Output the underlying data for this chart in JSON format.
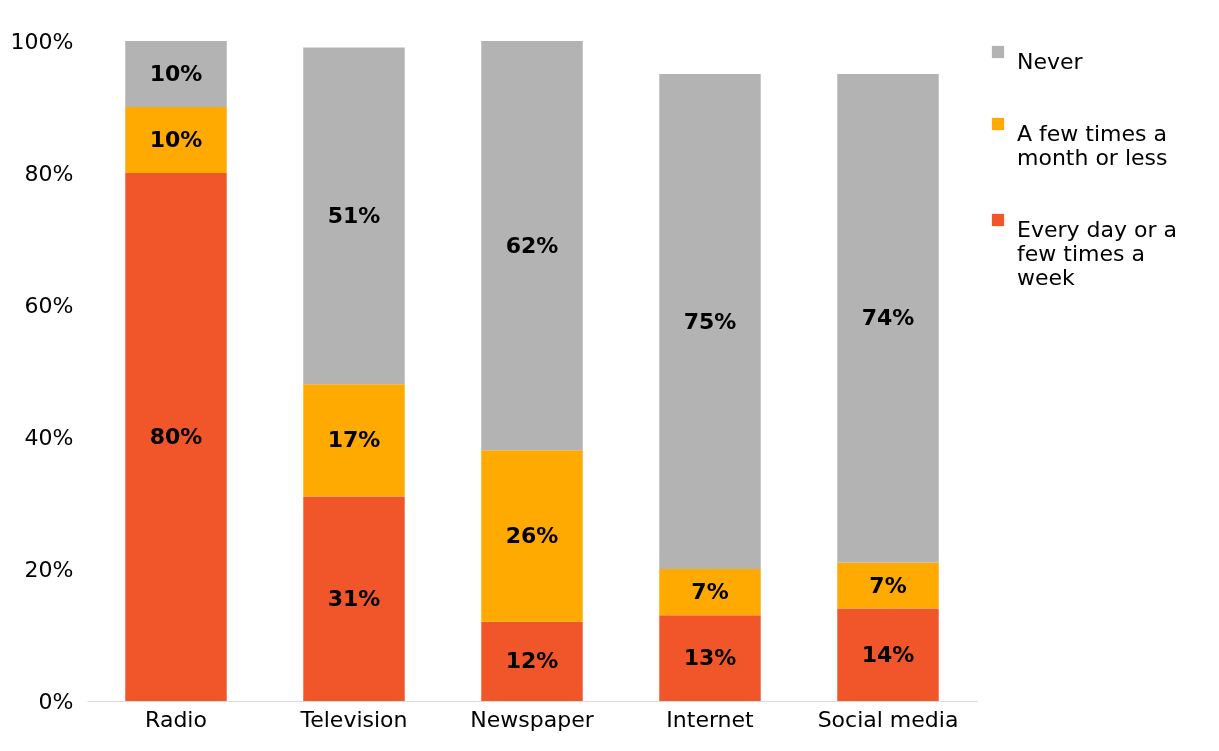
{
  "chart_data": {
    "type": "bar",
    "stacked": true,
    "categories": [
      "Radio",
      "Television",
      "Newspaper",
      "Internet",
      "Social media"
    ],
    "series": [
      {
        "name": "Every day or a few times a week",
        "color": "#f1562a",
        "values": [
          80,
          31,
          12,
          13,
          14
        ]
      },
      {
        "name": "A few times a month or less",
        "color": "#ffaa00",
        "values": [
          10,
          17,
          26,
          7,
          7
        ]
      },
      {
        "name": "Never",
        "color": "#b3b3b3",
        "values": [
          10,
          51,
          62,
          75,
          74
        ]
      }
    ],
    "ylim": [
      0,
      100
    ],
    "yticks": [
      {
        "value": 0,
        "label": "0%"
      },
      {
        "value": 20,
        "label": "20%"
      },
      {
        "value": 40,
        "label": "40%"
      },
      {
        "value": 60,
        "label": "60%"
      },
      {
        "value": 80,
        "label": "80%"
      },
      {
        "value": 100,
        "label": "100%"
      }
    ],
    "value_labels": [
      [
        "80%",
        "31%",
        "12%",
        "13%",
        "14%"
      ],
      [
        "10%",
        "17%",
        "26%",
        "7%",
        "7%"
      ],
      [
        "10%",
        "51%",
        "62%",
        "75%",
        "74%"
      ]
    ],
    "grid": false,
    "legend": "right"
  }
}
